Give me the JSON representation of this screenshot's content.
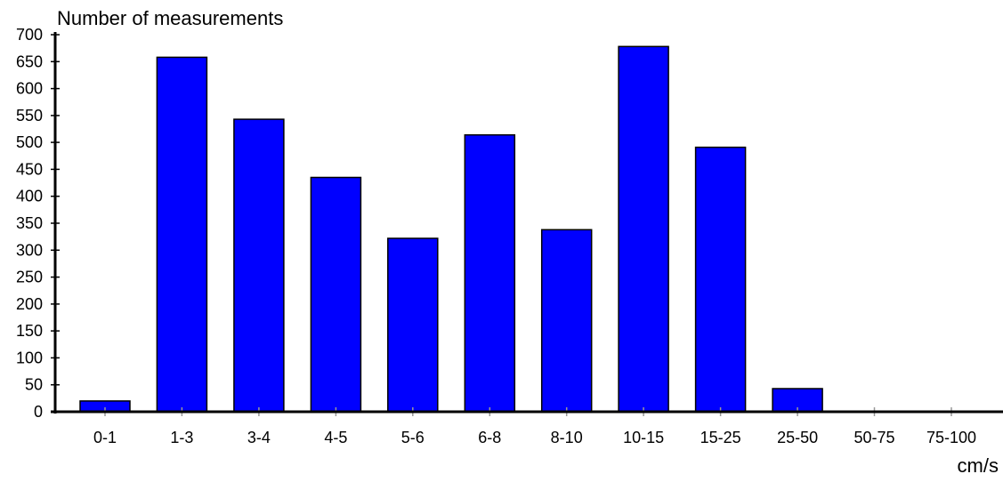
{
  "chart_data": {
    "type": "bar",
    "ylabel": "Number of measurements",
    "xlabel": "cm/s",
    "categories": [
      "0-1",
      "1-3",
      "3-4",
      "4-5",
      "5-6",
      "6-8",
      "8-10",
      "10-15",
      "15-25",
      "25-50",
      "50-75",
      "75-100"
    ],
    "values": [
      20,
      658,
      543,
      435,
      322,
      514,
      338,
      678,
      491,
      43,
      0,
      0
    ],
    "ylim": [
      0,
      700
    ],
    "yticks": [
      0,
      50,
      100,
      150,
      200,
      250,
      300,
      350,
      400,
      450,
      500,
      550,
      600,
      650,
      700
    ],
    "grid": false,
    "colors": {
      "bar": "#0000ff",
      "bar_edge": "#000000"
    }
  }
}
